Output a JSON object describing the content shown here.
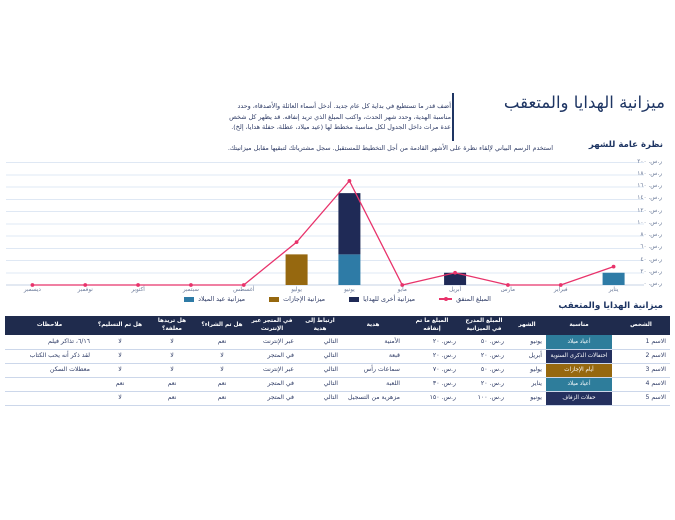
{
  "header": {
    "title": "ميزانية الهدايا والمتعقب",
    "intro": "أضف قدر ما تستطيع في بداية كل عام جديد. أدخل أسماء العائلة والأصدقاء، وحدد مناسبة الهدية، وحدد شهر الحدث، واكتب المبلغ الذي تريد إنفاقه. قد يظهر كل شخص عدة مرات داخل الجدول لكل مناسبة مخطط لها (عيد ميلاد، عطلة، حفلة هدايا، إلخ).",
    "overview_label": "نظرة عامة للشهر",
    "overview_desc": "استخدم الرسم البياني لإلقاء نظرة على الأشهر القادمة من أجل التخطيط للمستقبل. سجل مشترياتك لتبقيها مقابل ميزانيتك."
  },
  "chart_data": {
    "type": "combo-bar-line",
    "rtl": true,
    "categories": [
      "يناير",
      "فبراير",
      "مارس",
      "أبريل",
      "مايو",
      "يونيو",
      "يوليو",
      "أغسطس",
      "سبتمبر",
      "أكتوبر",
      "نوفمبر",
      "ديسمبر"
    ],
    "series": [
      {
        "name": "ميزانية عيد الميلاد",
        "type": "bar",
        "color": "#2e7ba6",
        "values": [
          20,
          0,
          0,
          0,
          0,
          50,
          0,
          0,
          0,
          0,
          0,
          0
        ]
      },
      {
        "name": "ميزانية الإجازات",
        "type": "bar",
        "color": "#96680f",
        "values": [
          0,
          0,
          0,
          0,
          0,
          0,
          50,
          0,
          0,
          0,
          0,
          0
        ]
      },
      {
        "name": "ميزانية أخرى للهدايا",
        "type": "bar",
        "color": "#1f2a56",
        "values": [
          0,
          0,
          0,
          20,
          0,
          100,
          0,
          0,
          0,
          0,
          0,
          0
        ]
      },
      {
        "name": "المبلغ المنفق",
        "type": "line",
        "color": "#e8336b",
        "values": [
          30,
          0,
          0,
          20,
          0,
          170,
          70,
          0,
          0,
          0,
          0,
          0
        ]
      }
    ],
    "ylim": [
      0,
      200
    ],
    "ytick_step": 20,
    "ytick_prefix": "ر.س.",
    "grid": true,
    "legend_position": "bottom"
  },
  "table": {
    "title": "ميزانية الهدايا والمتعقب",
    "columns": [
      "الشخص",
      "مناسبة",
      "الشهر",
      "المبلغ المدرج في الميزانية",
      "المبلغ ما تم إنفاقه",
      "هدية",
      "ارتباط إلى هدية",
      "في المتجر عبر الإنترنت",
      "هل تم الشراء؟",
      "هل تريدها مغلفة؟",
      "هل تم التسليم؟",
      "ملاحظات"
    ],
    "rows": [
      {
        "person": "الاسم 1",
        "occasion": "أعياد ميلاد",
        "occasion_color": "#2e7d9b",
        "month": "يونيو",
        "budget": "ر.س. ٥٠",
        "spent": "ر.س. ٢٠",
        "gift": "الأمنية",
        "link": "التالي",
        "store": "عبر الإنترنت",
        "purchased": "نعم",
        "wrapped": "لا",
        "delivered": "لا",
        "notes": "٦/١٦، تذاكر فيلم"
      },
      {
        "person": "الاسم 2",
        "occasion": "احتفالات الذكرى السنوية",
        "occasion_color": "#24305e",
        "month": "أبريل",
        "budget": "ر.س. ٢٠",
        "spent": "ر.س. ٢٠",
        "gift": "قبعة",
        "link": "التالي",
        "store": "في المتجر",
        "purchased": "لا",
        "wrapped": "لا",
        "delivered": "لا",
        "notes": "لقد ذكر أنه يحب الكتاب"
      },
      {
        "person": "الاسم 3",
        "occasion": "أيام الإجازات",
        "occasion_color": "#96680f",
        "month": "يوليو",
        "budget": "ر.س. ٥٠",
        "spent": "ر.س. ٧٠",
        "gift": "سماعات رأس",
        "link": "التالي",
        "store": "عبر الإنترنت",
        "purchased": "لا",
        "wrapped": "لا",
        "delivered": "لا",
        "notes": "معطلات السكن"
      },
      {
        "person": "الاسم 4",
        "occasion": "أعياد ميلاد",
        "occasion_color": "#2e7d9b",
        "month": "يناير",
        "budget": "ر.س. ٢٠",
        "spent": "ر.س. ٣٠",
        "gift": "اللعبة",
        "link": "التالي",
        "store": "في المتجر",
        "purchased": "نعم",
        "wrapped": "نعم",
        "delivered": "نعم",
        "notes": ""
      },
      {
        "person": "الاسم 5",
        "occasion": "حفلات الزفاف",
        "occasion_color": "#24305e",
        "month": "يونيو",
        "budget": "ر.س. ١٠٠",
        "spent": "ر.س. ١٥٠",
        "gift": "مزهرية من التسجيل",
        "link": "التالي",
        "store": "في المتجر",
        "purchased": "نعم",
        "wrapped": "نعم",
        "delivered": "لا",
        "notes": ""
      }
    ]
  },
  "colors": {
    "title": "#1e3563",
    "body_text": "#2f3c66",
    "header_bg": "#1f2b4d",
    "grid": "#dfe8f4",
    "axis": "#c7d3e6",
    "tick_text": "#6b7a99"
  }
}
